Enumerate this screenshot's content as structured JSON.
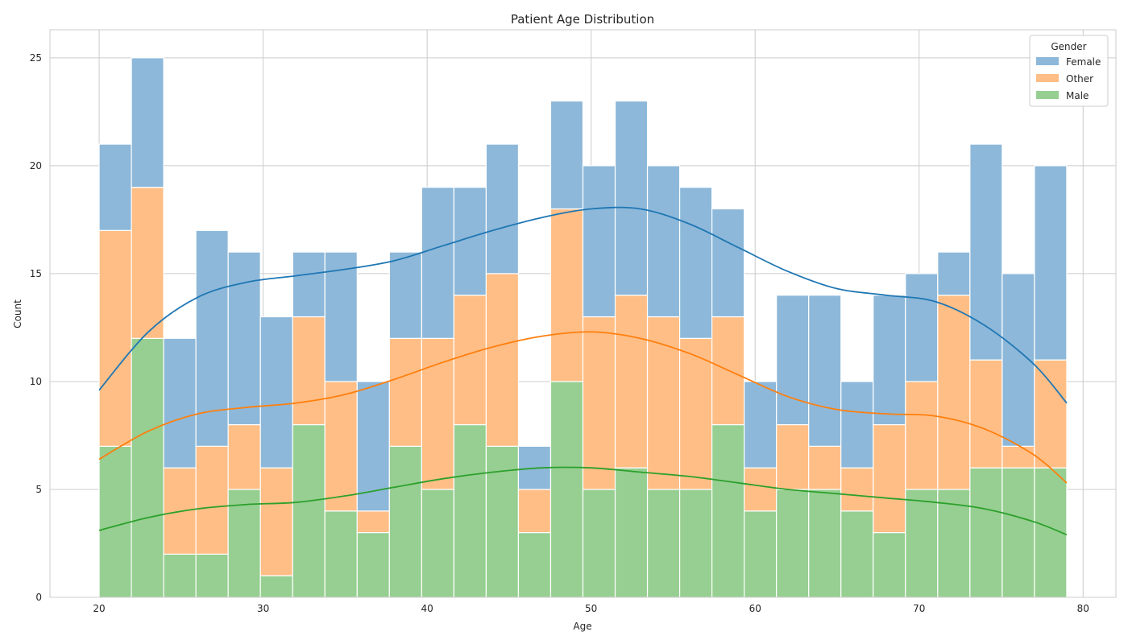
{
  "chart_data": {
    "type": "bar",
    "stacked": true,
    "title": "Patient Age Distribution",
    "xlabel": "Age",
    "ylabel": "Count",
    "xlim": [
      17,
      82
    ],
    "ylim": [
      0,
      26.3
    ],
    "x_ticks": [
      20,
      30,
      40,
      50,
      60,
      70,
      80
    ],
    "y_ticks": [
      0,
      5,
      10,
      15,
      20,
      25
    ],
    "grid": true,
    "legend": {
      "title": "Gender",
      "placement": "top-right"
    },
    "bin_width": 1.9667,
    "bin_starts": [
      20,
      21.967,
      23.933,
      25.9,
      27.867,
      29.833,
      31.8,
      33.767,
      35.733,
      37.7,
      39.667,
      41.633,
      43.6,
      45.567,
      47.533,
      49.5,
      51.467,
      53.433,
      55.4,
      57.367,
      59.333,
      61.3,
      63.267,
      65.233,
      67.2,
      69.167,
      71.133,
      73.1,
      75.067,
      77.033
    ],
    "series": [
      {
        "name": "Male",
        "color": "#2ca02c",
        "fill": "#96cf91",
        "values": [
          7,
          12,
          2,
          2,
          5,
          1,
          8,
          4,
          3,
          7,
          5,
          8,
          7,
          3,
          10,
          5,
          6,
          5,
          5,
          8,
          4,
          5,
          5,
          4,
          3,
          5,
          5,
          6,
          6,
          6
        ]
      },
      {
        "name": "Other",
        "color": "#ff7f0e",
        "fill": "#ffbe86",
        "values": [
          10,
          7,
          4,
          5,
          3,
          5,
          5,
          6,
          1,
          5,
          7,
          6,
          8,
          2,
          8,
          8,
          8,
          8,
          7,
          5,
          2,
          3,
          2,
          2,
          5,
          5,
          9,
          5,
          1,
          5
        ]
      },
      {
        "name": "Female",
        "color": "#1f77b4",
        "fill": "#8db8d9",
        "values": [
          4,
          6,
          6,
          10,
          8,
          7,
          3,
          6,
          6,
          4,
          7,
          5,
          6,
          2,
          5,
          7,
          9,
          7,
          7,
          5,
          4,
          6,
          7,
          4,
          6,
          5,
          2,
          10,
          8,
          9
        ]
      }
    ],
    "kde": [
      {
        "name": "Female",
        "color": "#1f77b4",
        "x": [
          20,
          23,
          26,
          29,
          32,
          35,
          38,
          41,
          44,
          47,
          50,
          53,
          56,
          59,
          62,
          65,
          68,
          71,
          74,
          77,
          79
        ],
        "y": [
          9.6,
          12.3,
          13.9,
          14.6,
          14.9,
          15.2,
          15.6,
          16.3,
          17.0,
          17.6,
          18.0,
          18.0,
          17.3,
          16.2,
          15.1,
          14.3,
          14.0,
          13.7,
          12.6,
          10.8,
          9.0
        ]
      },
      {
        "name": "Other",
        "color": "#ff7f0e",
        "x": [
          20,
          23,
          26,
          29,
          32,
          35,
          38,
          41,
          44,
          47,
          50,
          53,
          56,
          59,
          62,
          65,
          68,
          71,
          74,
          77,
          79
        ],
        "y": [
          6.4,
          7.7,
          8.5,
          8.8,
          9.0,
          9.4,
          10.1,
          10.9,
          11.6,
          12.1,
          12.3,
          12.0,
          11.3,
          10.3,
          9.3,
          8.7,
          8.5,
          8.4,
          7.8,
          6.6,
          5.3
        ]
      },
      {
        "name": "Male",
        "color": "#2ca02c",
        "x": [
          20,
          23,
          26,
          29,
          32,
          35,
          38,
          41,
          44,
          47,
          50,
          53,
          56,
          59,
          62,
          65,
          68,
          71,
          74,
          77,
          79
        ],
        "y": [
          3.1,
          3.7,
          4.1,
          4.3,
          4.4,
          4.7,
          5.1,
          5.5,
          5.8,
          6.0,
          6.0,
          5.8,
          5.6,
          5.3,
          5.0,
          4.8,
          4.6,
          4.4,
          4.1,
          3.5,
          2.9
        ]
      }
    ]
  }
}
